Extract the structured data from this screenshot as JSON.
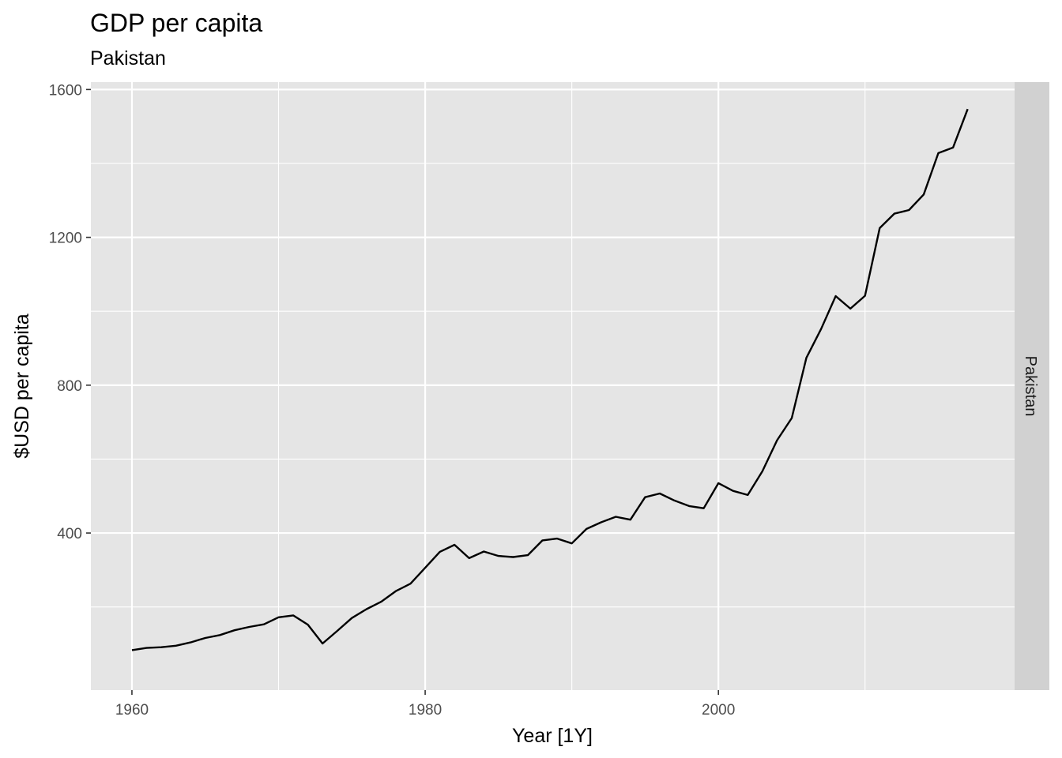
{
  "chart_data": {
    "type": "line",
    "title": "GDP per capita",
    "subtitle": "Pakistan",
    "xlabel": "Year [1Y]",
    "ylabel": "$USD per capita",
    "facet_label": "Pakistan",
    "xlim": [
      1957.2,
      2020.2
    ],
    "ylim": [
      -25,
      1620
    ],
    "x_ticks": [
      1960,
      1980,
      2000
    ],
    "x_tick_labels": [
      "1960",
      "1980",
      "2000"
    ],
    "x_minor_ticks": [
      1970,
      1990,
      2010
    ],
    "y_ticks": [
      400,
      800,
      1200,
      1600
    ],
    "y_tick_labels": [
      "400",
      "800",
      "1200",
      "1600"
    ],
    "y_minor_ticks": [
      200,
      600,
      1000,
      1400
    ],
    "grid": true,
    "colors": {
      "panel_background": "#e5e5e5",
      "strip_background": "#d1d1d1",
      "grid": "#ffffff",
      "line": "#000000",
      "tick": "#333333"
    },
    "series": [
      {
        "x": [
          1960,
          1961,
          1962,
          1963,
          1964,
          1965,
          1966,
          1967,
          1968,
          1969,
          1970,
          1971,
          1972,
          1973,
          1974,
          1975,
          1976,
          1977,
          1978,
          1979,
          1980,
          1981,
          1982,
          1983,
          1984,
          1985,
          1986,
          1987,
          1988,
          1989,
          1990,
          1991,
          1992,
          1993,
          1994,
          1995,
          1996,
          1997,
          1998,
          1999,
          2000,
          2001,
          2002,
          2003,
          2004,
          2005,
          2006,
          2007,
          2008,
          2009,
          2010,
          2011,
          2012,
          2013,
          2014,
          2015,
          2016,
          2017
        ],
        "y": [
          83,
          89,
          91,
          95,
          104,
          116,
          124,
          137,
          146,
          153,
          172,
          177,
          152,
          101,
          135,
          170,
          194,
          214,
          243,
          263,
          306,
          349,
          368,
          332,
          350,
          338,
          335,
          340,
          380,
          385,
          372,
          411,
          429,
          444,
          436,
          497,
          507,
          488,
          473,
          467,
          535,
          514,
          503,
          567,
          651,
          711,
          874,
          952,
          1041,
          1007,
          1042,
          1225,
          1264,
          1274,
          1316,
          1428,
          1443,
          1547
        ]
      }
    ]
  }
}
